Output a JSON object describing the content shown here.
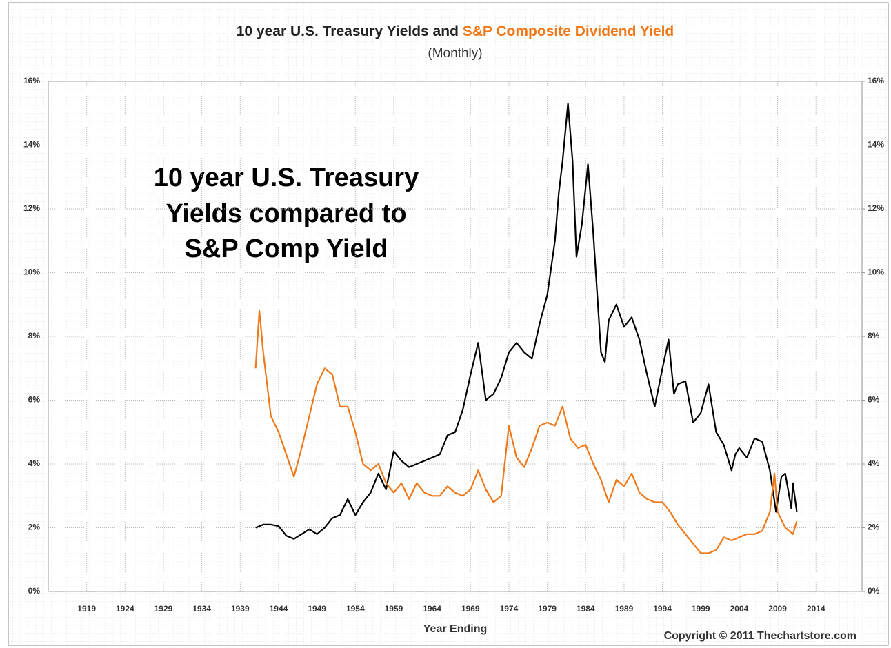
{
  "chart_data": {
    "type": "line",
    "title": [
      "10 year U.S. Treasury Yields and",
      "S&P Composite Dividend Yield"
    ],
    "subtitle": "(Monthly)",
    "annotation": [
      "10 year U.S. Treasury",
      "Yields compared to",
      "S&P Comp Yield"
    ],
    "xlabel": "Year Ending",
    "credit": "Copyright © 2011 Thechartstore.com",
    "xlim": [
      1914,
      2020
    ],
    "xticks": [
      1919,
      1924,
      1929,
      1934,
      1939,
      1944,
      1949,
      1954,
      1959,
      1964,
      1969,
      1974,
      1979,
      1984,
      1989,
      1994,
      1999,
      2004,
      2009,
      2014
    ],
    "ylim": [
      0,
      16
    ],
    "yticks": [
      {
        "value": 0,
        "label": "0%"
      },
      {
        "value": 2,
        "label": "2%"
      },
      {
        "value": 4,
        "label": "4%"
      },
      {
        "value": 6,
        "label": "6%"
      },
      {
        "value": 8,
        "label": "8%"
      },
      {
        "value": 10,
        "label": "10%"
      },
      {
        "value": 12,
        "label": "12%"
      },
      {
        "value": 14,
        "label": "14%"
      },
      {
        "value": 16,
        "label": "16%"
      }
    ],
    "y2lim": [
      0,
      16
    ],
    "y2ticks": [
      {
        "value": 0,
        "label": "0%"
      },
      {
        "value": 2,
        "label": "2%"
      },
      {
        "value": 4,
        "label": "4%"
      },
      {
        "value": 6,
        "label": "6%"
      },
      {
        "value": 8,
        "label": "8%"
      },
      {
        "value": 10,
        "label": "10%"
      },
      {
        "value": 12,
        "label": "12%"
      },
      {
        "value": 14,
        "label": "14%"
      },
      {
        "value": 16,
        "label": "16%"
      }
    ],
    "grid": true,
    "series": [
      {
        "color": "#000000",
        "x": [
          1941,
          1942,
          1943,
          1944,
          1945,
          1946,
          1947,
          1948,
          1949,
          1950,
          1951,
          1952,
          1953,
          1954,
          1955,
          1956,
          1957,
          1958,
          1959,
          1960,
          1961,
          1962,
          1963,
          1964,
          1965,
          1966,
          1967,
          1968,
          1969,
          1970,
          1971,
          1972,
          1973,
          1974,
          1975,
          1976,
          1977,
          1978,
          1979,
          1980,
          1980.5,
          1981,
          1981.7,
          1982.3,
          1982.8,
          1983.5,
          1984.3,
          1985,
          1986,
          1986.5,
          1987,
          1988,
          1989,
          1990,
          1991,
          1992,
          1993,
          1994,
          1994.8,
          1995.5,
          1996,
          1997,
          1998,
          1999,
          2000,
          2001,
          2002,
          2003,
          2003.5,
          2004,
          2005,
          2006,
          2007,
          2008,
          2008.8,
          2009.5,
          2010,
          2010.8,
          2011,
          2011.5
        ],
        "values": [
          2.0,
          2.1,
          2.1,
          2.05,
          1.75,
          1.65,
          1.8,
          1.95,
          1.8,
          2.0,
          2.3,
          2.4,
          2.9,
          2.4,
          2.8,
          3.1,
          3.7,
          3.2,
          4.4,
          4.1,
          3.9,
          4.0,
          4.1,
          4.2,
          4.3,
          4.9,
          5.0,
          5.7,
          6.8,
          7.8,
          6.0,
          6.2,
          6.7,
          7.5,
          7.8,
          7.5,
          7.3,
          8.4,
          9.3,
          11.0,
          12.5,
          13.5,
          15.3,
          13.5,
          10.5,
          11.5,
          13.4,
          11.2,
          7.5,
          7.2,
          8.5,
          9.0,
          8.3,
          8.6,
          7.9,
          6.8,
          5.8,
          7.0,
          7.9,
          6.2,
          6.5,
          6.6,
          5.3,
          5.6,
          6.5,
          5.0,
          4.6,
          3.8,
          4.3,
          4.5,
          4.2,
          4.8,
          4.7,
          3.8,
          2.5,
          3.6,
          3.7,
          2.6,
          3.4,
          2.5
        ]
      },
      {
        "color": "#f07818",
        "x": [
          1941,
          1941.5,
          1942,
          1943,
          1944,
          1945,
          1946,
          1947,
          1948,
          1949,
          1950,
          1951,
          1952,
          1953,
          1954,
          1955,
          1956,
          1957,
          1958,
          1959,
          1960,
          1961,
          1962,
          1963,
          1964,
          1965,
          1966,
          1967,
          1968,
          1969,
          1970,
          1971,
          1972,
          1973,
          1974,
          1975,
          1976,
          1977,
          1978,
          1979,
          1980,
          1981,
          1982,
          1983,
          1984,
          1985,
          1986,
          1987,
          1988,
          1989,
          1990,
          1991,
          1992,
          1993,
          1994,
          1995,
          1996,
          1997,
          1998,
          1999,
          2000,
          2001,
          2002,
          2003,
          2004,
          2005,
          2006,
          2007,
          2008,
          2008.6,
          2009,
          2010,
          2011,
          2011.5
        ],
        "values": [
          7.0,
          8.8,
          7.5,
          5.5,
          5.0,
          4.3,
          3.6,
          4.5,
          5.5,
          6.5,
          7.0,
          6.8,
          5.8,
          5.8,
          5.0,
          4.0,
          3.8,
          4.0,
          3.4,
          3.1,
          3.4,
          2.9,
          3.4,
          3.1,
          3.0,
          3.0,
          3.3,
          3.1,
          3.0,
          3.2,
          3.8,
          3.2,
          2.8,
          3.0,
          5.2,
          4.2,
          3.9,
          4.5,
          5.2,
          5.3,
          5.2,
          5.8,
          4.8,
          4.5,
          4.6,
          4.0,
          3.5,
          2.8,
          3.5,
          3.3,
          3.7,
          3.1,
          2.9,
          2.8,
          2.8,
          2.5,
          2.1,
          1.8,
          1.5,
          1.2,
          1.2,
          1.3,
          1.7,
          1.6,
          1.7,
          1.8,
          1.8,
          1.9,
          2.5,
          3.7,
          2.5,
          2.0,
          1.8,
          2.2
        ]
      }
    ]
  }
}
